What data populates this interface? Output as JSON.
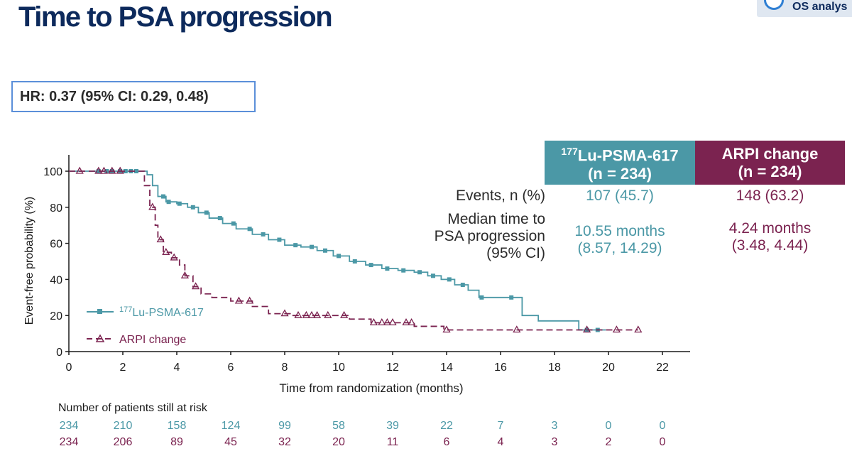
{
  "title": "Time to PSA progression",
  "badge": {
    "text": "OS analys"
  },
  "hr_text": "HR: 0.37 (95% CI: 0.29, 0.48)",
  "table": {
    "lu_head": {
      "sup": "177",
      "name": "Lu-PSMA-617",
      "n": "(n = 234)"
    },
    "arpi_head": {
      "name": "ARPI change",
      "n": "(n = 234)"
    },
    "rows": {
      "events_label": "Events, n (%)",
      "events_lu": "107 (45.7)",
      "events_arpi": "148 (63.2)",
      "median_label_1": "Median time to",
      "median_label_2": "PSA progression",
      "median_label_3": "(95% CI)",
      "median_lu_1": "10.55 months",
      "median_lu_2": "(8.57, 14.29)",
      "median_arpi_1": "4.24 months",
      "median_arpi_2": "(3.48, 4.44)"
    }
  },
  "colors": {
    "lu": "#4b98a6",
    "arpi": "#7b2350",
    "title": "#0d2a5c",
    "hr_border": "#5b8fd9"
  },
  "chart_data": {
    "type": "line",
    "xlabel": "Time from randomization (months)",
    "ylabel": "Event-free probability (%)",
    "xlim": [
      0,
      22
    ],
    "ylim": [
      0,
      100
    ],
    "xticks": [
      0,
      2,
      4,
      6,
      8,
      10,
      12,
      14,
      16,
      18,
      20,
      22
    ],
    "yticks": [
      0,
      20,
      40,
      60,
      80,
      100
    ],
    "legend_position": "lower-left",
    "series": [
      {
        "name": "Lu-PSMA-617",
        "name_sup": "177",
        "color": "#4b98a6",
        "marker": "square",
        "points": [
          [
            0,
            100
          ],
          [
            2.7,
            100
          ],
          [
            2.9,
            98
          ],
          [
            3.1,
            92
          ],
          [
            3.3,
            86
          ],
          [
            3.6,
            83
          ],
          [
            4.0,
            82
          ],
          [
            4.4,
            80
          ],
          [
            4.8,
            77
          ],
          [
            5.2,
            74
          ],
          [
            5.7,
            71
          ],
          [
            6.2,
            68
          ],
          [
            6.8,
            65
          ],
          [
            7.4,
            62
          ],
          [
            8.0,
            59
          ],
          [
            8.6,
            58
          ],
          [
            9.2,
            56
          ],
          [
            9.8,
            53
          ],
          [
            10.4,
            50
          ],
          [
            11.0,
            48
          ],
          [
            11.6,
            46
          ],
          [
            12.2,
            45
          ],
          [
            12.8,
            44
          ],
          [
            13.3,
            42
          ],
          [
            13.8,
            40
          ],
          [
            14.3,
            37
          ],
          [
            14.8,
            34
          ],
          [
            15.2,
            30
          ],
          [
            16.0,
            30
          ],
          [
            16.8,
            30
          ],
          [
            16.8,
            20
          ],
          [
            17.4,
            20
          ],
          [
            17.4,
            17
          ],
          [
            18.9,
            17
          ],
          [
            18.9,
            12
          ],
          [
            19.9,
            12
          ]
        ],
        "censor_x": [
          1.1,
          1.4,
          1.6,
          1.9,
          2.1,
          2.3,
          2.5,
          3.5,
          3.7,
          4.1,
          4.6,
          5.1,
          5.6,
          6.1,
          6.7,
          7.2,
          7.8,
          8.4,
          9.0,
          9.5,
          10.0,
          10.6,
          11.2,
          11.8,
          12.4,
          13.0,
          13.5,
          14.1,
          14.6,
          15.3,
          16.4,
          19.2,
          19.6
        ]
      },
      {
        "name": "ARPI change",
        "color": "#7b2350",
        "marker": "triangle",
        "points": [
          [
            0,
            100
          ],
          [
            2.6,
            100
          ],
          [
            2.8,
            92
          ],
          [
            3.0,
            80
          ],
          [
            3.2,
            70
          ],
          [
            3.3,
            62
          ],
          [
            3.5,
            55
          ],
          [
            3.8,
            52
          ],
          [
            4.1,
            48
          ],
          [
            4.3,
            42
          ],
          [
            4.6,
            36
          ],
          [
            4.9,
            32
          ],
          [
            5.3,
            30
          ],
          [
            6.0,
            28
          ],
          [
            6.8,
            25
          ],
          [
            7.4,
            21
          ],
          [
            8.2,
            20
          ],
          [
            10.4,
            18
          ],
          [
            11.2,
            16
          ],
          [
            12.8,
            14
          ],
          [
            13.9,
            12
          ],
          [
            21.1,
            12
          ]
        ],
        "censor_x": [
          0.4,
          1.1,
          1.3,
          1.6,
          1.9,
          3.1,
          3.4,
          3.6,
          3.9,
          4.3,
          4.7,
          6.3,
          6.7,
          8.0,
          8.5,
          8.8,
          9.0,
          9.2,
          9.6,
          10.2,
          11.3,
          11.6,
          11.8,
          12.0,
          12.5,
          12.7,
          14.0,
          16.6,
          19.2,
          20.3,
          21.1
        ]
      }
    ],
    "at_risk": {
      "title": "Number of patients still at risk",
      "x": [
        0,
        2,
        4,
        6,
        8,
        10,
        12,
        14,
        16,
        18,
        20,
        22
      ],
      "lu": [
        "234",
        "210",
        "158",
        "124",
        "99",
        "58",
        "39",
        "22",
        "7",
        "3",
        "0",
        "0"
      ],
      "arpi": [
        "234",
        "206",
        "89",
        "45",
        "32",
        "20",
        "11",
        "6",
        "4",
        "3",
        "2",
        "0"
      ]
    }
  }
}
